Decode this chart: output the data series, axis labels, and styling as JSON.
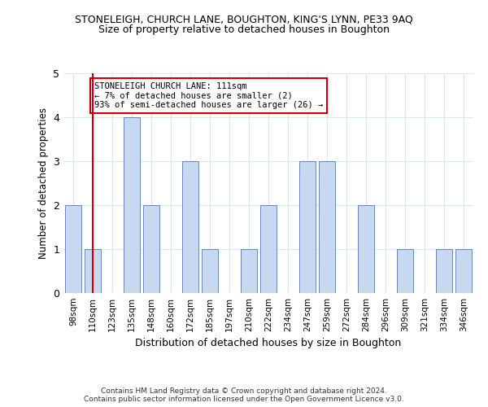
{
  "title": "STONELEIGH, CHURCH LANE, BOUGHTON, KING'S LYNN, PE33 9AQ",
  "subtitle": "Size of property relative to detached houses in Boughton",
  "xlabel": "Distribution of detached houses by size in Boughton",
  "ylabel": "Number of detached properties",
  "categories": [
    "98sqm",
    "110sqm",
    "123sqm",
    "135sqm",
    "148sqm",
    "160sqm",
    "172sqm",
    "185sqm",
    "197sqm",
    "210sqm",
    "222sqm",
    "234sqm",
    "247sqm",
    "259sqm",
    "272sqm",
    "284sqm",
    "296sqm",
    "309sqm",
    "321sqm",
    "334sqm",
    "346sqm"
  ],
  "values": [
    2,
    1,
    0,
    4,
    2,
    0,
    3,
    1,
    0,
    1,
    2,
    0,
    3,
    3,
    0,
    2,
    0,
    1,
    0,
    1,
    1
  ],
  "bar_color": "#c8d8ef",
  "bar_edge_color": "#5878a8",
  "highlight_index": 1,
  "highlight_line_color": "#cc0000",
  "annotation_text": "STONELEIGH CHURCH LANE: 111sqm\n← 7% of detached houses are smaller (2)\n93% of semi-detached houses are larger (26) →",
  "annotation_box_color": "#ffffff",
  "annotation_box_edge": "#cc0000",
  "ylim": [
    0,
    5
  ],
  "yticks": [
    0,
    1,
    2,
    3,
    4,
    5
  ],
  "footer_line1": "Contains HM Land Registry data © Crown copyright and database right 2024.",
  "footer_line2": "Contains public sector information licensed under the Open Government Licence v3.0.",
  "bg_color": "#ffffff",
  "grid_color": "#dce6f1",
  "title_fontsize": 9,
  "subtitle_fontsize": 9,
  "annotation_fontsize": 7.5
}
